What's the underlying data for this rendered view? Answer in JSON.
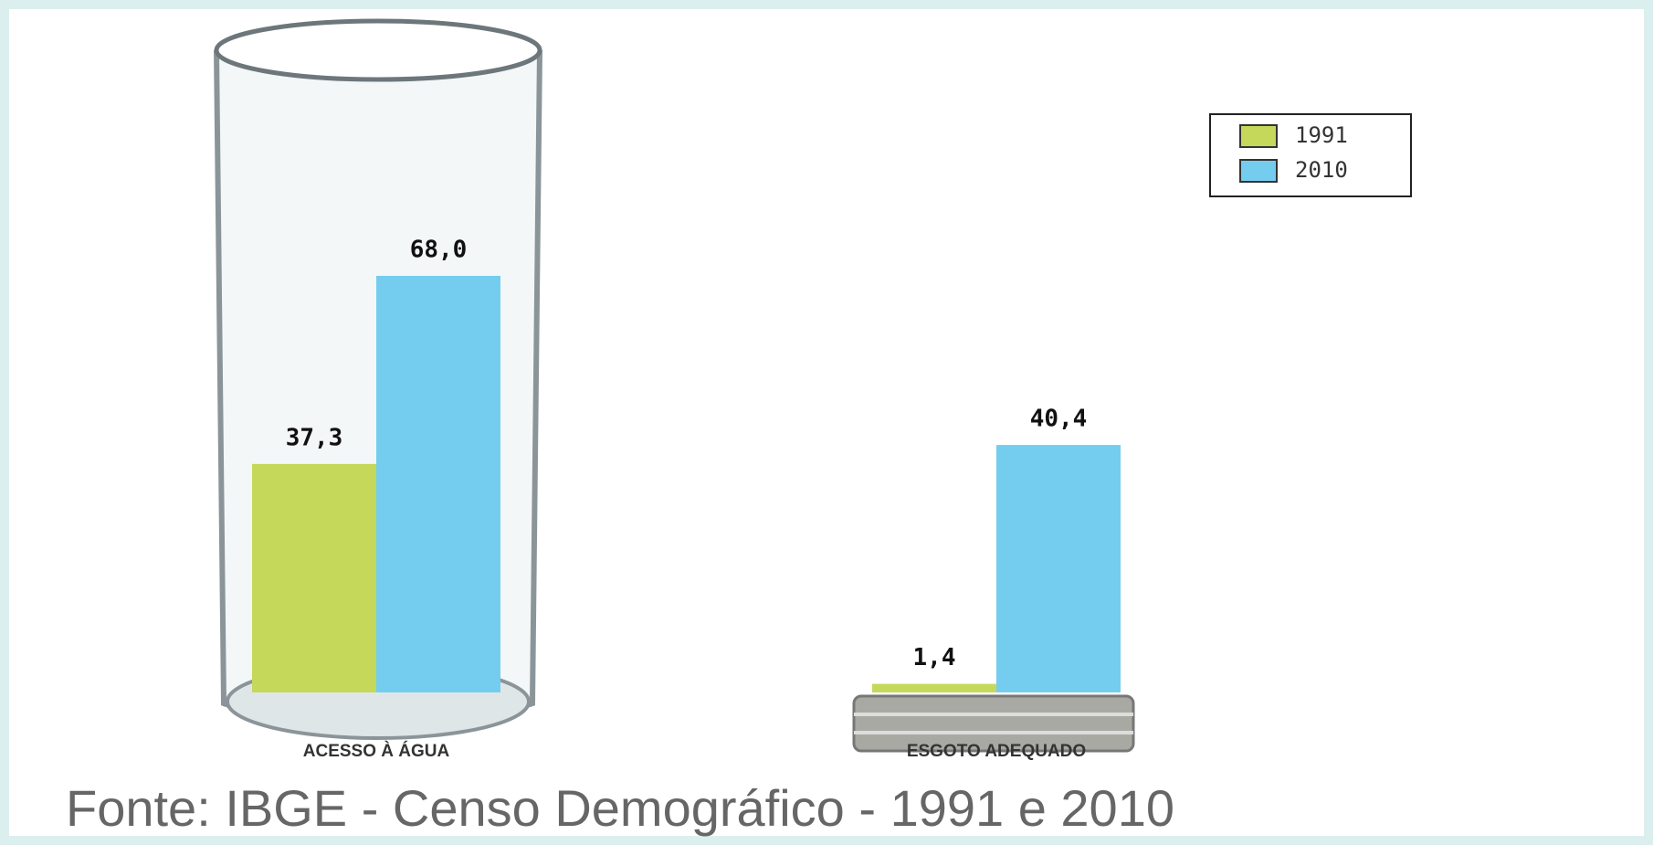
{
  "chart_data": {
    "type": "bar",
    "categories": [
      "ACESSO À ÁGUA",
      "ESGOTO ADEQUADO"
    ],
    "series": [
      {
        "name": "1991",
        "color": "#c5d85a",
        "values": [
          37.3,
          1.4
        ],
        "value_labels": [
          "37,3",
          "1,4"
        ]
      },
      {
        "name": "2010",
        "color": "#74cdee",
        "values": [
          68.0,
          40.4
        ],
        "value_labels": [
          "68,0",
          "40,4"
        ]
      }
    ],
    "legend": "upper right",
    "source": "Fonte: IBGE - Censo Demográfico - 1991 e 2010"
  }
}
